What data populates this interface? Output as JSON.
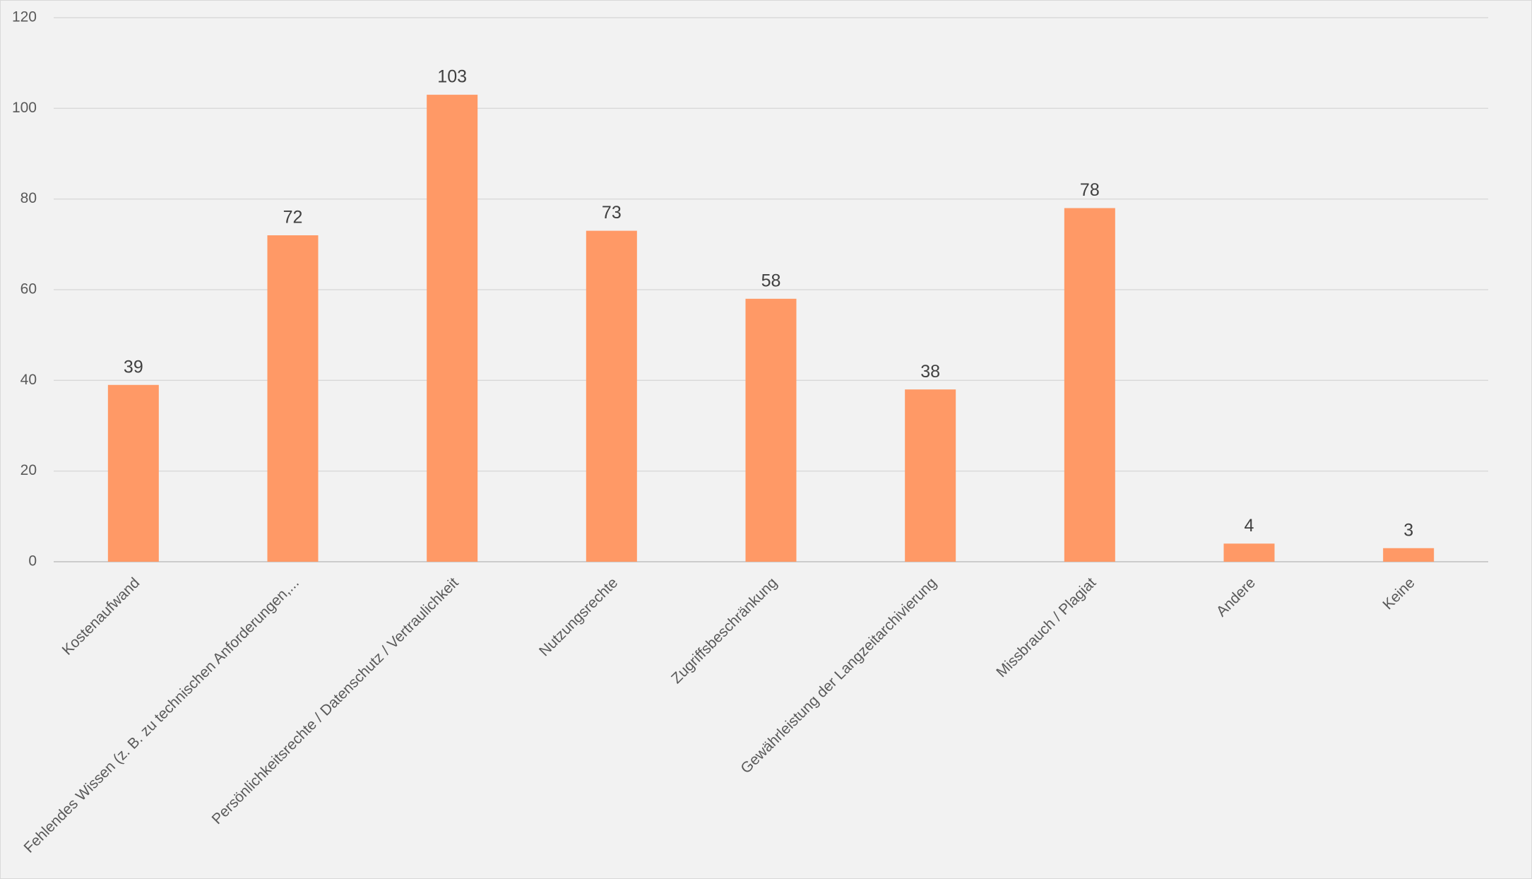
{
  "chart_data": {
    "type": "bar",
    "categories": [
      "Kostenaufwand",
      "Fehlendes Wissen (z. B. zu technischen Anforderungen,...",
      "Persönlichkeitsrechte / Datenschutz / Vertraulichkeit",
      "Nutzungsrechte",
      "Zugriffsbeschränkung",
      "Gewährleistung der Langzeitarchivierung",
      "Missbrauch / Plagiat",
      "Andere",
      "Keine"
    ],
    "values": [
      39,
      72,
      103,
      73,
      58,
      38,
      78,
      4,
      3
    ],
    "color": "#ff9966",
    "ylim": [
      0,
      120
    ],
    "yticks": [
      0,
      20,
      40,
      60,
      80,
      100,
      120
    ],
    "grid": true
  }
}
